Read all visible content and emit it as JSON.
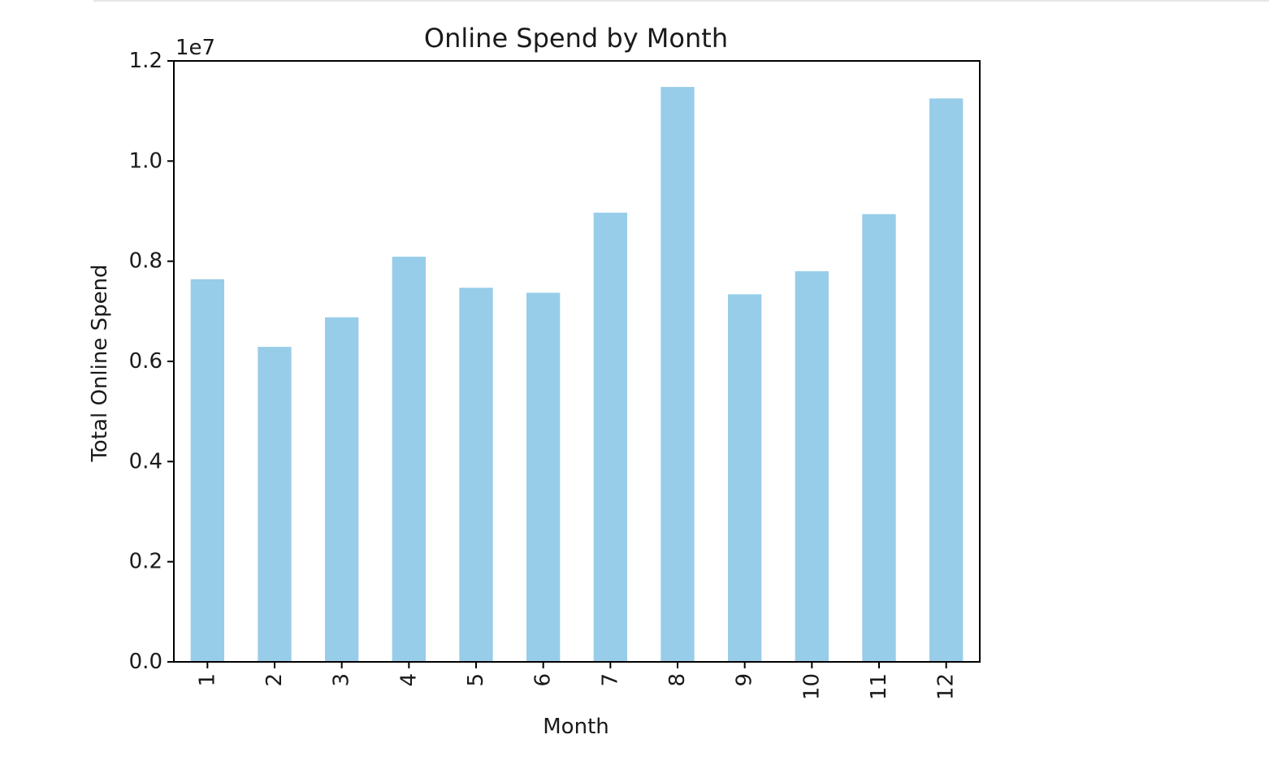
{
  "chart_data": {
    "type": "bar",
    "title": "Online Spend by Month",
    "xlabel": "Month",
    "ylabel": "Total Online Spend",
    "offset_label": "1e7",
    "categories": [
      "1",
      "2",
      "3",
      "4",
      "5",
      "6",
      "7",
      "8",
      "9",
      "10",
      "11",
      "12"
    ],
    "values": [
      7640000,
      6290000,
      6880000,
      8090000,
      7470000,
      7370000,
      8970000,
      11480000,
      7340000,
      7800000,
      8940000,
      11250000
    ],
    "ylim": [
      0,
      12000000
    ],
    "yticks": [
      {
        "value": 0,
        "label": "0.0"
      },
      {
        "value": 2000000,
        "label": "0.2"
      },
      {
        "value": 4000000,
        "label": "0.4"
      },
      {
        "value": 6000000,
        "label": "0.6"
      },
      {
        "value": 8000000,
        "label": "0.8"
      },
      {
        "value": 10000000,
        "label": "1.0"
      },
      {
        "value": 12000000,
        "label": "1.2"
      }
    ],
    "bar_color": "#97cde8",
    "grid": false,
    "legend": "none"
  }
}
